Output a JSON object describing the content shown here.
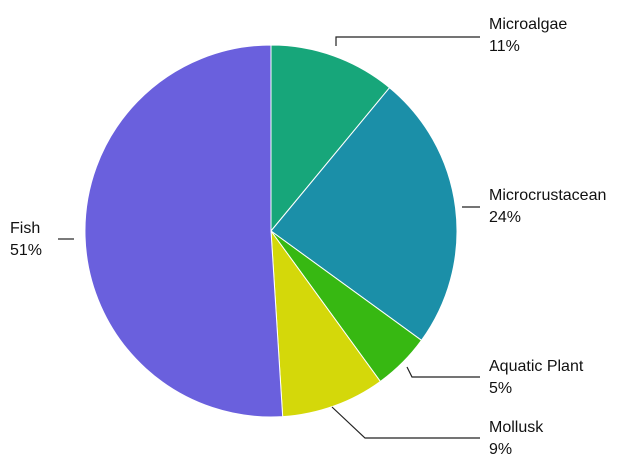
{
  "chart_data": {
    "type": "pie",
    "title": "",
    "start": "top",
    "direction": "clockwise",
    "slices": [
      {
        "label": "Microalgae",
        "value": 11,
        "pct_label": "11%",
        "color": "#17a67a"
      },
      {
        "label": "Microcrustacean",
        "value": 24,
        "pct_label": "24%",
        "color": "#1b8fa8"
      },
      {
        "label": "Aquatic Plant",
        "value": 5,
        "pct_label": "5%",
        "color": "#37b812"
      },
      {
        "label": "Mollusk",
        "value": 9,
        "pct_label": "9%",
        "color": "#d4d80a"
      },
      {
        "label": "Fish",
        "value": 51,
        "pct_label": "51%",
        "color": "#6a60dd"
      }
    ]
  }
}
